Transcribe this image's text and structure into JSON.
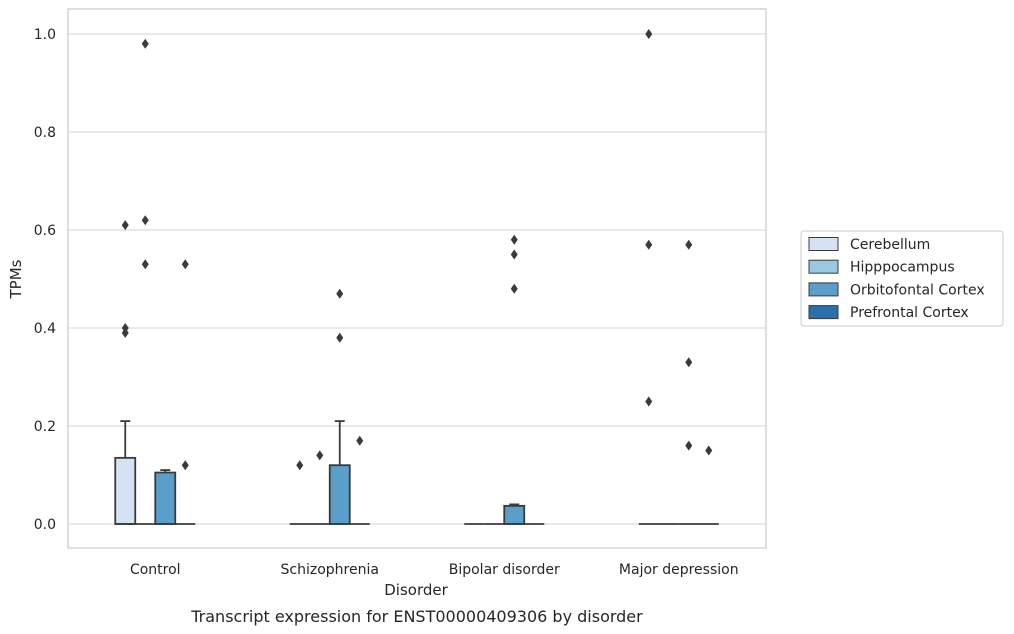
{
  "chart_data": {
    "type": "box",
    "xlabel": "Disorder",
    "ylabel": "TPMs",
    "caption": "Transcript expression for ENST00000409306 by disorder",
    "ylim": [
      -0.048,
      1.05
    ],
    "yticks": [
      "0.0",
      "0.2",
      "0.4",
      "0.6",
      "0.8",
      "1.0"
    ],
    "grid": "horizontal",
    "legend_position": "right",
    "categories": [
      "Control",
      "Schizophrenia",
      "Bipolar disorder",
      "Major depression"
    ],
    "series": [
      {
        "name": "Cerebellum",
        "color": "#d3e3f3",
        "boxes": [
          {
            "q1": 0,
            "median": 0,
            "q3": 0.135,
            "whisker_low": 0,
            "whisker_high": 0.21,
            "outliers": [
              0.39,
              0.4,
              0.61
            ]
          },
          {
            "q1": 0,
            "median": 0,
            "q3": 0,
            "whisker_low": 0,
            "whisker_high": 0,
            "outliers": [
              0.12
            ]
          },
          {
            "q1": 0,
            "median": 0,
            "q3": 0,
            "whisker_low": 0,
            "whisker_high": 0,
            "outliers": []
          },
          {
            "q1": 0,
            "median": 0,
            "q3": 0,
            "whisker_low": 0,
            "whisker_high": 0,
            "outliers": [
              0.25,
              0.57,
              1.0
            ]
          }
        ]
      },
      {
        "name": "Hipppocampus",
        "color": "#9ac8e0",
        "boxes": [
          {
            "q1": 0,
            "median": 0,
            "q3": 0,
            "whisker_low": 0,
            "whisker_high": 0,
            "outliers": [
              0.53,
              0.62,
              0.98
            ]
          },
          {
            "q1": 0,
            "median": 0,
            "q3": 0,
            "whisker_low": 0,
            "whisker_high": 0,
            "outliers": [
              0.14
            ]
          },
          {
            "q1": 0,
            "median": 0,
            "q3": 0,
            "whisker_low": 0,
            "whisker_high": 0,
            "outliers": []
          },
          {
            "q1": 0,
            "median": 0,
            "q3": 0,
            "whisker_low": 0,
            "whisker_high": 0,
            "outliers": []
          }
        ]
      },
      {
        "name": "Orbitofontal Cortex",
        "color": "#5a9ec9",
        "boxes": [
          {
            "q1": 0,
            "median": 0,
            "q3": 0.105,
            "whisker_low": 0,
            "whisker_high": 0.11,
            "outliers": []
          },
          {
            "q1": 0,
            "median": 0,
            "q3": 0.12,
            "whisker_low": 0,
            "whisker_high": 0.21,
            "outliers": [
              0.38,
              0.47
            ]
          },
          {
            "q1": 0,
            "median": 0,
            "q3": 0.037,
            "whisker_low": 0,
            "whisker_high": 0.04,
            "outliers": [
              0.48,
              0.55,
              0.58
            ]
          },
          {
            "q1": 0,
            "median": 0,
            "q3": 0,
            "whisker_low": 0,
            "whisker_high": 0,
            "outliers": [
              0.16,
              0.33,
              0.57
            ]
          }
        ]
      },
      {
        "name": "Prefrontal Cortex",
        "color": "#2d6fac",
        "boxes": [
          {
            "q1": 0,
            "median": 0,
            "q3": 0,
            "whisker_low": 0,
            "whisker_high": 0,
            "outliers": [
              0.12,
              0.53
            ]
          },
          {
            "q1": 0,
            "median": 0,
            "q3": 0,
            "whisker_low": 0,
            "whisker_high": 0,
            "outliers": [
              0.17
            ]
          },
          {
            "q1": 0,
            "median": 0,
            "q3": 0,
            "whisker_low": 0,
            "whisker_high": 0,
            "outliers": []
          },
          {
            "q1": 0,
            "median": 0,
            "q3": 0,
            "whisker_low": 0,
            "whisker_high": 0,
            "outliers": [
              0.15
            ]
          }
        ]
      }
    ]
  }
}
